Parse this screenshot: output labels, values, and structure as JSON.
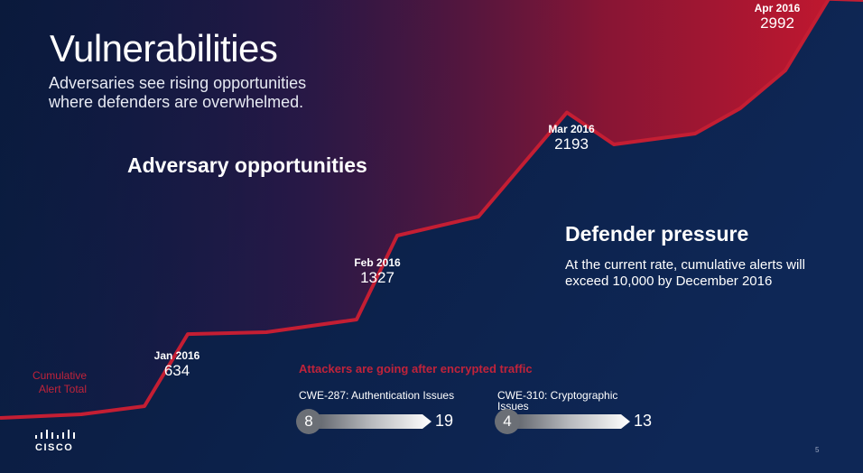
{
  "title": "Vulnerabilities",
  "subtitle": "Adversaries see rising opportunities where defenders are overwhelmed.",
  "sections": {
    "adversary": "Adversary opportunities",
    "defender": "Defender pressure",
    "defender_body": "At the current rate, cumulative alerts will exceed 10,000 by December 2016"
  },
  "axis_label": "Cumulative Alert Total",
  "chart_data": {
    "type": "area",
    "ylabel": "Cumulative Alert Total",
    "points": [
      {
        "label": "Jan 2016",
        "value": 634
      },
      {
        "label": "Feb 2016",
        "value": 1327
      },
      {
        "label": "Mar 2016",
        "value": 2193
      },
      {
        "label": "Apr 2016",
        "value": 2992
      }
    ],
    "colors": {
      "line": "#c41e33",
      "background": "#0b1f45"
    }
  },
  "encrypted": {
    "heading": "Attackers are going after encrypted traffic",
    "items": [
      {
        "label": "CWE-287: Authentication Issues",
        "from": 8,
        "to": 19
      },
      {
        "label": "CWE-310: Cryptographic Issues",
        "from": 4,
        "to": 13
      }
    ]
  },
  "footer": {
    "brand": "CISCO",
    "page": "5"
  }
}
